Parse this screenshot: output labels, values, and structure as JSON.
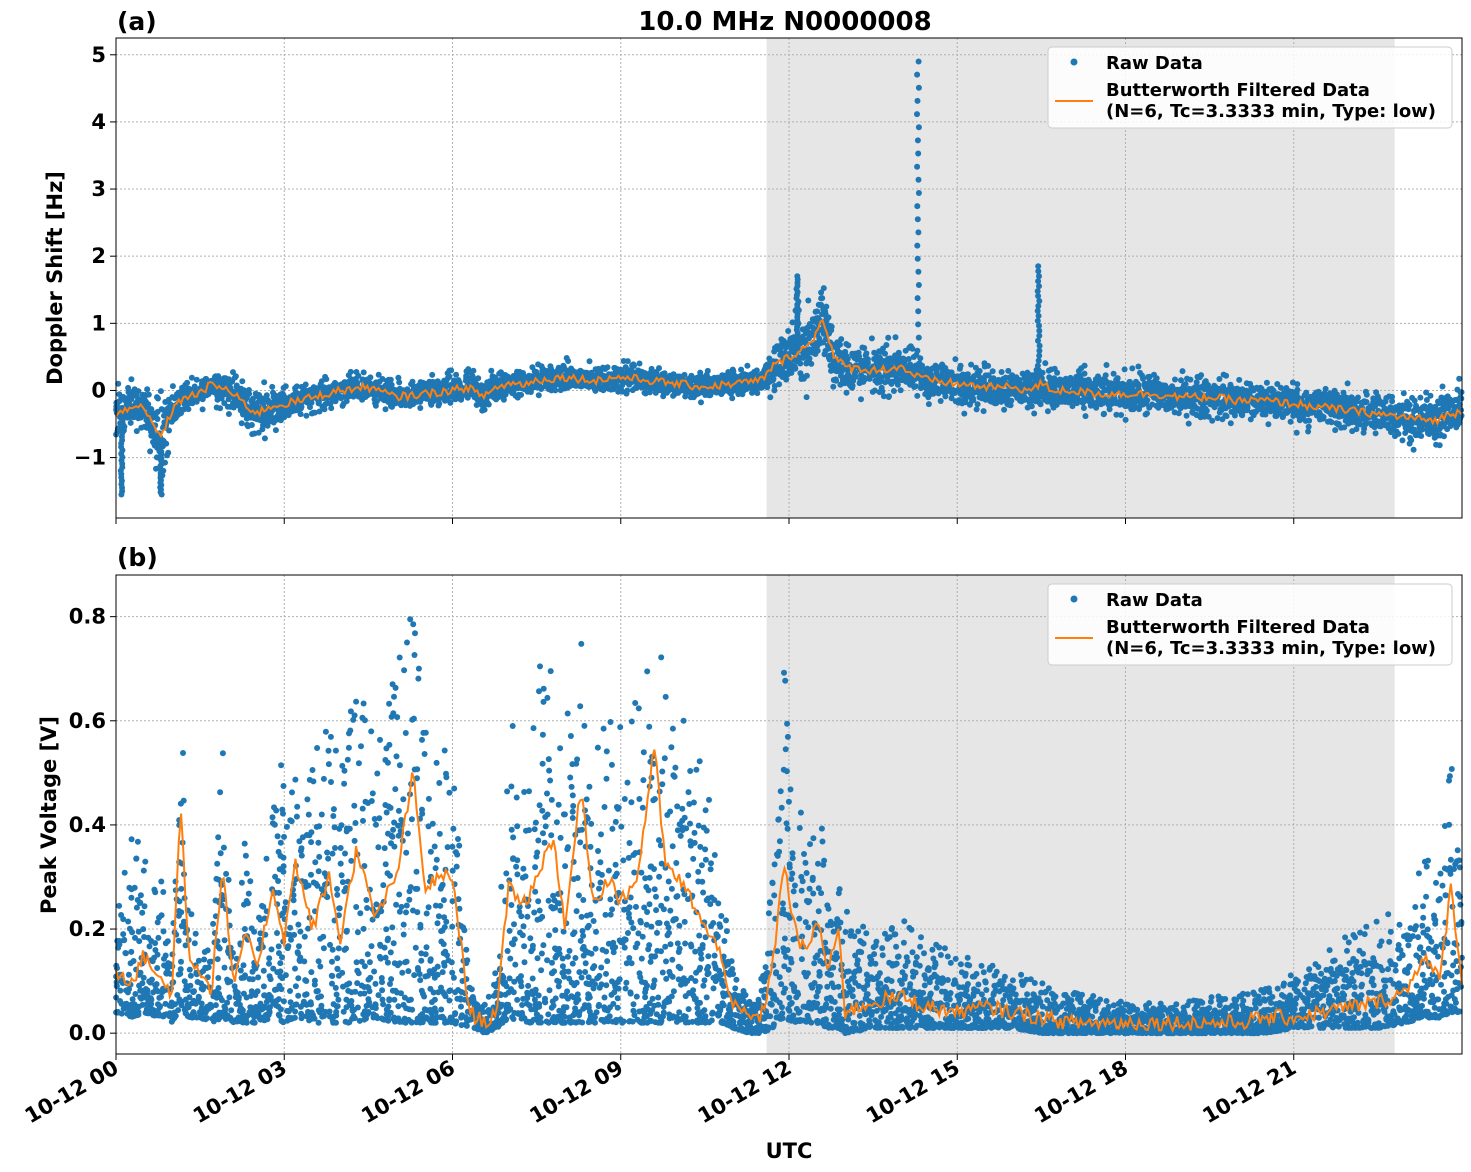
{
  "title": "10.0 MHz N0000008",
  "xlabel": "UTC",
  "x_ticks": [
    "10-12 00",
    "10-12 03",
    "10-12 06",
    "10-12 09",
    "10-12 12",
    "10-12 15",
    "10-12 18",
    "10-12 21"
  ],
  "legend": {
    "raw": "Raw Data",
    "filtered_line1": "Butterworth Filtered Data",
    "filtered_line2": "(N=6, Tc=3.3333 min, Type: low)"
  },
  "colors": {
    "raw": "#1f77b4",
    "filtered": "#ff7f0e",
    "shade": "#e6e6e6"
  },
  "chart_data": [
    {
      "type": "scatter",
      "panel": "(a)",
      "ylabel": "Doppler Shift [Hz]",
      "xlim_hours": [
        0,
        24
      ],
      "ylim": [
        -1.9,
        5.25
      ],
      "yticks": [
        -1,
        0,
        1,
        2,
        3,
        4,
        5
      ],
      "ytick_labels": [
        "−1",
        "0",
        "1",
        "2",
        "3",
        "4",
        "5"
      ],
      "shaded_region_hours": [
        11.6,
        22.8
      ],
      "grid": true,
      "legend_position": "top-right",
      "series": [
        {
          "name": "Butterworth Filtered Data",
          "x_hours": [
            0,
            0.3,
            0.5,
            0.8,
            1.0,
            1.2,
            1.5,
            1.7,
            2.0,
            2.3,
            2.5,
            2.7,
            3.0,
            3.3,
            3.5,
            4.0,
            4.5,
            5.0,
            5.5,
            6.0,
            6.3,
            6.5,
            6.8,
            7.0,
            7.3,
            7.5,
            8.0,
            8.5,
            9.0,
            9.5,
            10.0,
            10.5,
            11.0,
            11.5,
            11.7,
            12.0,
            12.2,
            12.4,
            12.6,
            12.8,
            13.0,
            13.5,
            14.0,
            14.3,
            14.5,
            15.0,
            15.5,
            16.0,
            16.3,
            16.5,
            16.7,
            17.0,
            17.5,
            18.0,
            18.5,
            19.0,
            19.5,
            20.0,
            20.5,
            21.0,
            21.5,
            22.0,
            22.5,
            23.0,
            23.5,
            24.0
          ],
          "values": [
            -0.4,
            -0.2,
            -0.3,
            -0.7,
            -0.3,
            -0.1,
            -0.05,
            0.1,
            0.0,
            -0.2,
            -0.35,
            -0.25,
            -0.2,
            -0.15,
            -0.1,
            0.0,
            0.05,
            -0.1,
            -0.05,
            0.0,
            0.05,
            -0.1,
            0.05,
            0.1,
            0.1,
            0.15,
            0.2,
            0.15,
            0.2,
            0.15,
            0.1,
            0.05,
            0.1,
            0.15,
            0.35,
            0.5,
            0.6,
            0.7,
            1.1,
            0.5,
            0.35,
            0.3,
            0.35,
            0.2,
            0.15,
            0.1,
            0.05,
            0.05,
            0.0,
            0.1,
            0.0,
            0.0,
            -0.05,
            -0.05,
            -0.05,
            -0.1,
            -0.1,
            -0.15,
            -0.15,
            -0.2,
            -0.25,
            -0.3,
            -0.35,
            -0.4,
            -0.45,
            -0.3
          ]
        },
        {
          "name": "Raw Data",
          "spread_hz": [
            0.45,
            0.3,
            0.3,
            0.6,
            0.35,
            0.2,
            0.2,
            0.2,
            0.3,
            0.35,
            0.35,
            0.3,
            0.25,
            0.2,
            0.2,
            0.2,
            0.2,
            0.2,
            0.2,
            0.25,
            0.25,
            0.3,
            0.25,
            0.2,
            0.2,
            0.2,
            0.2,
            0.2,
            0.2,
            0.2,
            0.2,
            0.2,
            0.2,
            0.2,
            0.35,
            0.45,
            0.5,
            0.55,
            0.6,
            0.45,
            0.4,
            0.35,
            0.35,
            0.3,
            0.3,
            0.3,
            0.3,
            0.3,
            0.3,
            0.3,
            0.3,
            0.3,
            0.3,
            0.3,
            0.3,
            0.3,
            0.3,
            0.3,
            0.3,
            0.3,
            0.3,
            0.3,
            0.3,
            0.35,
            0.35,
            0.35
          ],
          "spikes": [
            {
              "x_hours": 14.3,
              "y_max": 4.9
            },
            {
              "x_hours": 16.45,
              "y_max": 1.85
            },
            {
              "x_hours": 12.15,
              "y_max": 1.7
            },
            {
              "x_hours": 0.8,
              "y_min": -1.55
            },
            {
              "x_hours": 0.1,
              "y_min": -1.55
            }
          ]
        }
      ]
    },
    {
      "type": "scatter",
      "panel": "(b)",
      "ylabel": "Peak Voltage [V]",
      "xlim_hours": [
        0,
        24
      ],
      "ylim": [
        -0.04,
        0.88
      ],
      "yticks": [
        0.0,
        0.2,
        0.4,
        0.6,
        0.8
      ],
      "ytick_labels": [
        "0.0",
        "0.2",
        "0.4",
        "0.6",
        "0.8"
      ],
      "shaded_region_hours": [
        11.6,
        22.8
      ],
      "grid": true,
      "legend_position": "top-right",
      "series": [
        {
          "name": "Butterworth Filtered Data",
          "x_hours": [
            0,
            0.3,
            0.5,
            0.8,
            1.0,
            1.15,
            1.3,
            1.5,
            1.7,
            1.9,
            2.1,
            2.3,
            2.5,
            2.8,
            3.0,
            3.2,
            3.5,
            3.8,
            4.0,
            4.3,
            4.6,
            5.0,
            5.3,
            5.5,
            5.8,
            6.0,
            6.3,
            6.6,
            6.8,
            7.0,
            7.3,
            7.5,
            7.8,
            8.0,
            8.3,
            8.5,
            8.8,
            9.0,
            9.3,
            9.6,
            9.8,
            10.0,
            10.3,
            10.5,
            10.8,
            11.0,
            11.3,
            11.5,
            11.7,
            11.9,
            12.1,
            12.3,
            12.5,
            12.7,
            12.9,
            13.0,
            13.5,
            14.0,
            14.5,
            15.0,
            15.5,
            16.0,
            16.5,
            17.0,
            17.5,
            18.0,
            18.5,
            19.0,
            19.5,
            20.0,
            20.5,
            21.0,
            21.5,
            22.0,
            22.5,
            23.0,
            23.3,
            23.6,
            23.8,
            24.0
          ],
          "values": [
            0.12,
            0.1,
            0.15,
            0.1,
            0.08,
            0.44,
            0.15,
            0.12,
            0.08,
            0.32,
            0.08,
            0.2,
            0.12,
            0.28,
            0.18,
            0.33,
            0.2,
            0.3,
            0.18,
            0.36,
            0.22,
            0.3,
            0.5,
            0.28,
            0.3,
            0.3,
            0.04,
            0.02,
            0.05,
            0.28,
            0.25,
            0.3,
            0.38,
            0.2,
            0.48,
            0.25,
            0.3,
            0.25,
            0.3,
            0.55,
            0.32,
            0.3,
            0.25,
            0.2,
            0.15,
            0.05,
            0.03,
            0.03,
            0.12,
            0.33,
            0.2,
            0.15,
            0.22,
            0.12,
            0.2,
            0.04,
            0.06,
            0.07,
            0.05,
            0.04,
            0.05,
            0.04,
            0.03,
            0.02,
            0.02,
            0.02,
            0.02,
            0.02,
            0.02,
            0.02,
            0.03,
            0.03,
            0.04,
            0.05,
            0.06,
            0.08,
            0.15,
            0.1,
            0.28,
            0.1
          ],
          "step": true
        },
        {
          "name": "Raw Data",
          "upper": [
            0.25,
            0.4,
            0.35,
            0.3,
            0.2,
            0.72,
            0.25,
            0.2,
            0.15,
            0.58,
            0.15,
            0.4,
            0.25,
            0.45,
            0.55,
            0.6,
            0.55,
            0.65,
            0.55,
            0.7,
            0.6,
            0.7,
            0.84,
            0.6,
            0.55,
            0.55,
            0.12,
            0.05,
            0.15,
            0.6,
            0.6,
            0.75,
            0.7,
            0.6,
            0.8,
            0.55,
            0.65,
            0.6,
            0.65,
            0.82,
            0.7,
            0.6,
            0.6,
            0.55,
            0.3,
            0.12,
            0.08,
            0.1,
            0.3,
            0.75,
            0.4,
            0.45,
            0.45,
            0.35,
            0.3,
            0.25,
            0.18,
            0.22,
            0.18,
            0.15,
            0.14,
            0.12,
            0.1,
            0.08,
            0.07,
            0.06,
            0.06,
            0.06,
            0.07,
            0.08,
            0.1,
            0.12,
            0.15,
            0.2,
            0.22,
            0.25,
            0.35,
            0.3,
            0.6,
            0.3
          ],
          "lower": [
            0.04,
            0.03,
            0.04,
            0.03,
            0.02,
            0.05,
            0.03,
            0.03,
            0.02,
            0.03,
            0.02,
            0.02,
            0.02,
            0.03,
            0.02,
            0.03,
            0.02,
            0.02,
            0.02,
            0.02,
            0.03,
            0.02,
            0.02,
            0.02,
            0.02,
            0.02,
            0.01,
            0.0,
            0.01,
            0.03,
            0.02,
            0.02,
            0.02,
            0.02,
            0.02,
            0.02,
            0.02,
            0.02,
            0.02,
            0.02,
            0.02,
            0.02,
            0.02,
            0.02,
            0.02,
            0.01,
            0.0,
            0.0,
            0.01,
            0.03,
            0.02,
            0.02,
            0.02,
            0.01,
            0.01,
            0.0,
            0.01,
            0.01,
            0.01,
            0.01,
            0.01,
            0.01,
            0.0,
            0.0,
            0.0,
            0.0,
            0.0,
            0.0,
            0.0,
            0.0,
            0.0,
            0.01,
            0.01,
            0.01,
            0.01,
            0.02,
            0.03,
            0.03,
            0.04,
            0.04
          ]
        }
      ]
    }
  ]
}
